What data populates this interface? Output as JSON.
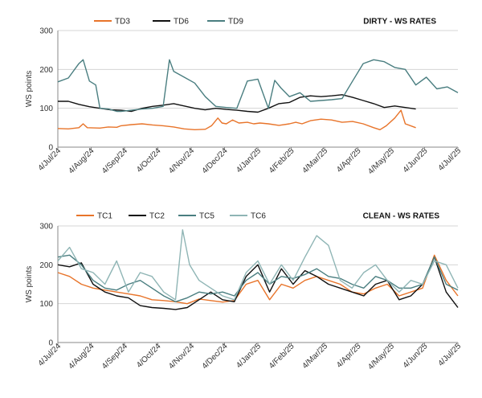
{
  "chart_data": [
    {
      "type": "line",
      "title": "DIRTY - WS RATES",
      "ylabel": "WS points",
      "ylim": [
        0,
        300
      ],
      "yticks": [
        "0",
        "100",
        "200",
        "300"
      ],
      "xticks": [
        "4/Jul/24",
        "4/Aug/24",
        "4/Sep/24",
        "4/Oct/24",
        "4/Nov/24",
        "4/Dec/24",
        "4/Jan/25",
        "4/Feb/25",
        "4/Mar/25",
        "4/Apr/25",
        "4/May/25",
        "4/Jun/25",
        "4/Jul/25"
      ],
      "legend_position": "top-left",
      "grid": "horizontal",
      "series": [
        {
          "name": "TD3",
          "color": "#e8742a",
          "points": [
            [
              0,
              48
            ],
            [
              0.5,
              47
            ],
            [
              1,
              50
            ],
            [
              1.2,
              60
            ],
            [
              1.4,
              50
            ],
            [
              2,
              49
            ],
            [
              2.4,
              52
            ],
            [
              2.8,
              51
            ],
            [
              3,
              55
            ],
            [
              3.5,
              58
            ],
            [
              4,
              60
            ],
            [
              4.5,
              57
            ],
            [
              5,
              55
            ],
            [
              5.5,
              52
            ],
            [
              6,
              47
            ],
            [
              6.5,
              45
            ],
            [
              7,
              46
            ],
            [
              7.3,
              55
            ],
            [
              7.6,
              75
            ],
            [
              7.8,
              62
            ],
            [
              8,
              60
            ],
            [
              8.3,
              70
            ],
            [
              8.6,
              62
            ],
            [
              9,
              64
            ],
            [
              9.3,
              60
            ],
            [
              9.6,
              62
            ],
            [
              10,
              60
            ],
            [
              10.5,
              56
            ],
            [
              11,
              60
            ],
            [
              11.3,
              64
            ],
            [
              11.6,
              60
            ],
            [
              12,
              68
            ],
            [
              12.5,
              72
            ],
            [
              13,
              70
            ],
            [
              13.5,
              64
            ],
            [
              14,
              66
            ],
            [
              14.5,
              60
            ],
            [
              15,
              50
            ],
            [
              15.3,
              45
            ],
            [
              15.6,
              55
            ],
            [
              16,
              75
            ],
            [
              16.3,
              95
            ],
            [
              16.5,
              60
            ],
            [
              17,
              50
            ]
          ]
        },
        {
          "name": "TD6",
          "color": "#111111",
          "points": [
            [
              0,
              118
            ],
            [
              0.5,
              118
            ],
            [
              1,
              110
            ],
            [
              1.5,
              104
            ],
            [
              2,
              100
            ],
            [
              2.5,
              96
            ],
            [
              3,
              95
            ],
            [
              3.5,
              92
            ],
            [
              4,
              100
            ],
            [
              4.5,
              105
            ],
            [
              5,
              108
            ],
            [
              5.5,
              112
            ],
            [
              6,
              106
            ],
            [
              6.5,
              100
            ],
            [
              7,
              96
            ],
            [
              7.5,
              100
            ],
            [
              8,
              97
            ],
            [
              8.5,
              95
            ],
            [
              9,
              92
            ],
            [
              9.5,
              90
            ],
            [
              10,
              100
            ],
            [
              10.5,
              112
            ],
            [
              11,
              115
            ],
            [
              11.5,
              128
            ],
            [
              12,
              132
            ],
            [
              12.5,
              130
            ],
            [
              13,
              132
            ],
            [
              13.5,
              135
            ],
            [
              14,
              128
            ],
            [
              14.5,
              120
            ],
            [
              15,
              112
            ],
            [
              15.5,
              102
            ],
            [
              16,
              106
            ],
            [
              16.5,
              102
            ],
            [
              17,
              98
            ]
          ]
        },
        {
          "name": "TD9",
          "color": "#4a7e80",
          "points": [
            [
              0,
              168
            ],
            [
              0.5,
              178
            ],
            [
              1,
              215
            ],
            [
              1.2,
              225
            ],
            [
              1.5,
              170
            ],
            [
              1.8,
              160
            ],
            [
              2,
              100
            ],
            [
              2.4,
              98
            ],
            [
              2.8,
              92
            ],
            [
              3,
              92
            ],
            [
              3.5,
              95
            ],
            [
              4,
              98
            ],
            [
              4.5,
              100
            ],
            [
              5,
              105
            ],
            [
              5.3,
              225
            ],
            [
              5.5,
              195
            ],
            [
              6,
              180
            ],
            [
              6.5,
              165
            ],
            [
              7,
              130
            ],
            [
              7.5,
              105
            ],
            [
              8,
              102
            ],
            [
              8.5,
              100
            ],
            [
              9,
              170
            ],
            [
              9.5,
              175
            ],
            [
              10,
              100
            ],
            [
              10.3,
              172
            ],
            [
              10.6,
              152
            ],
            [
              11,
              130
            ],
            [
              11.5,
              140
            ],
            [
              12,
              118
            ],
            [
              12.5,
              120
            ],
            [
              13,
              122
            ],
            [
              13.5,
              125
            ],
            [
              14,
              170
            ],
            [
              14.5,
              215
            ],
            [
              15,
              225
            ],
            [
              15.5,
              220
            ],
            [
              16,
              205
            ],
            [
              16.5,
              200
            ],
            [
              17,
              160
            ],
            [
              17.5,
              180
            ],
            [
              18,
              150
            ],
            [
              18.5,
              155
            ],
            [
              19,
              140
            ]
          ]
        }
      ]
    },
    {
      "type": "line",
      "title": "CLEAN - WS RATES",
      "ylabel": "WS points",
      "ylim": [
        0,
        300
      ],
      "yticks": [
        "0",
        "100",
        "200",
        "300"
      ],
      "xticks": [
        "4/Jul/24",
        "4/Aug/24",
        "4/Sep/24",
        "4/Oct/24",
        "4/Nov/24",
        "4/Dec/24",
        "4/Jan/25",
        "4/Feb/25",
        "4/Mar/25",
        "4/Apr/25",
        "4/May/25",
        "4/Jun/25",
        "4/Jul/25"
      ],
      "legend_position": "top-left",
      "grid": "horizontal",
      "series": [
        {
          "name": "TC1",
          "color": "#e8742a",
          "points": [
            [
              0,
              180
            ],
            [
              0.5,
              170
            ],
            [
              1,
              150
            ],
            [
              1.5,
              140
            ],
            [
              2,
              135
            ],
            [
              2.5,
              130
            ],
            [
              3,
              125
            ],
            [
              3.5,
              120
            ],
            [
              4,
              110
            ],
            [
              4.5,
              108
            ],
            [
              5,
              105
            ],
            [
              5.5,
              100
            ],
            [
              6,
              112
            ],
            [
              6.5,
              108
            ],
            [
              7,
              104
            ],
            [
              7.5,
              108
            ],
            [
              8,
              150
            ],
            [
              8.5,
              160
            ],
            [
              9,
              110
            ],
            [
              9.5,
              150
            ],
            [
              10,
              140
            ],
            [
              10.5,
              160
            ],
            [
              11,
              170
            ],
            [
              11.5,
              160
            ],
            [
              12,
              150
            ],
            [
              12.5,
              130
            ],
            [
              13,
              125
            ],
            [
              13.5,
              140
            ],
            [
              14,
              150
            ],
            [
              14.5,
              120
            ],
            [
              15,
              130
            ],
            [
              15.5,
              140
            ],
            [
              16,
              225
            ],
            [
              16.5,
              160
            ],
            [
              17,
              120
            ]
          ]
        },
        {
          "name": "TC2",
          "color": "#111111",
          "points": [
            [
              0,
              200
            ],
            [
              0.5,
              195
            ],
            [
              1,
              205
            ],
            [
              1.5,
              150
            ],
            [
              2,
              130
            ],
            [
              2.5,
              120
            ],
            [
              3,
              115
            ],
            [
              3.5,
              95
            ],
            [
              4,
              90
            ],
            [
              4.5,
              88
            ],
            [
              5,
              85
            ],
            [
              5.5,
              90
            ],
            [
              6,
              110
            ],
            [
              6.5,
              130
            ],
            [
              7,
              110
            ],
            [
              7.5,
              105
            ],
            [
              8,
              170
            ],
            [
              8.5,
              200
            ],
            [
              9,
              130
            ],
            [
              9.5,
              190
            ],
            [
              10,
              150
            ],
            [
              10.5,
              185
            ],
            [
              11,
              170
            ],
            [
              11.5,
              150
            ],
            [
              12,
              140
            ],
            [
              12.5,
              130
            ],
            [
              13,
              120
            ],
            [
              13.5,
              150
            ],
            [
              14,
              160
            ],
            [
              14.5,
              110
            ],
            [
              15,
              120
            ],
            [
              15.5,
              150
            ],
            [
              16,
              220
            ],
            [
              16.5,
              130
            ],
            [
              17,
              90
            ]
          ]
        },
        {
          "name": "TC5",
          "color": "#4a7e80",
          "points": [
            [
              0,
              220
            ],
            [
              0.5,
              225
            ],
            [
              1,
              200
            ],
            [
              1.5,
              160
            ],
            [
              2,
              140
            ],
            [
              2.5,
              135
            ],
            [
              3,
              150
            ],
            [
              3.5,
              160
            ],
            [
              4,
              140
            ],
            [
              4.5,
              120
            ],
            [
              5,
              105
            ],
            [
              5.5,
              115
            ],
            [
              6,
              130
            ],
            [
              6.5,
              125
            ],
            [
              7,
              130
            ],
            [
              7.5,
              120
            ],
            [
              8,
              160
            ],
            [
              8.5,
              180
            ],
            [
              9,
              150
            ],
            [
              9.5,
              170
            ],
            [
              10,
              165
            ],
            [
              10.5,
              175
            ],
            [
              11,
              190
            ],
            [
              11.5,
              170
            ],
            [
              12,
              165
            ],
            [
              12.5,
              150
            ],
            [
              13,
              140
            ],
            [
              13.5,
              170
            ],
            [
              14,
              160
            ],
            [
              14.5,
              140
            ],
            [
              15,
              140
            ],
            [
              15.5,
              150
            ],
            [
              16,
              220
            ],
            [
              16.5,
              150
            ],
            [
              17,
              135
            ]
          ]
        },
        {
          "name": "TC6",
          "color": "#8fb5b5",
          "points": [
            [
              0,
              210
            ],
            [
              0.5,
              245
            ],
            [
              1,
              190
            ],
            [
              1.5,
              180
            ],
            [
              2,
              150
            ],
            [
              2.5,
              210
            ],
            [
              3,
              130
            ],
            [
              3.5,
              180
            ],
            [
              4,
              170
            ],
            [
              4.5,
              130
            ],
            [
              5,
              110
            ],
            [
              5.3,
              290
            ],
            [
              5.6,
              200
            ],
            [
              6,
              160
            ],
            [
              6.5,
              140
            ],
            [
              7,
              120
            ],
            [
              7.5,
              110
            ],
            [
              8,
              180
            ],
            [
              8.5,
              210
            ],
            [
              9,
              150
            ],
            [
              9.5,
              200
            ],
            [
              10,
              160
            ],
            [
              10.5,
              220
            ],
            [
              11,
              275
            ],
            [
              11.5,
              250
            ],
            [
              12,
              160
            ],
            [
              12.5,
              140
            ],
            [
              13,
              180
            ],
            [
              13.5,
              200
            ],
            [
              14,
              160
            ],
            [
              14.5,
              130
            ],
            [
              15,
              160
            ],
            [
              15.5,
              150
            ],
            [
              16,
              210
            ],
            [
              16.5,
              200
            ],
            [
              17,
              140
            ]
          ]
        }
      ]
    }
  ]
}
